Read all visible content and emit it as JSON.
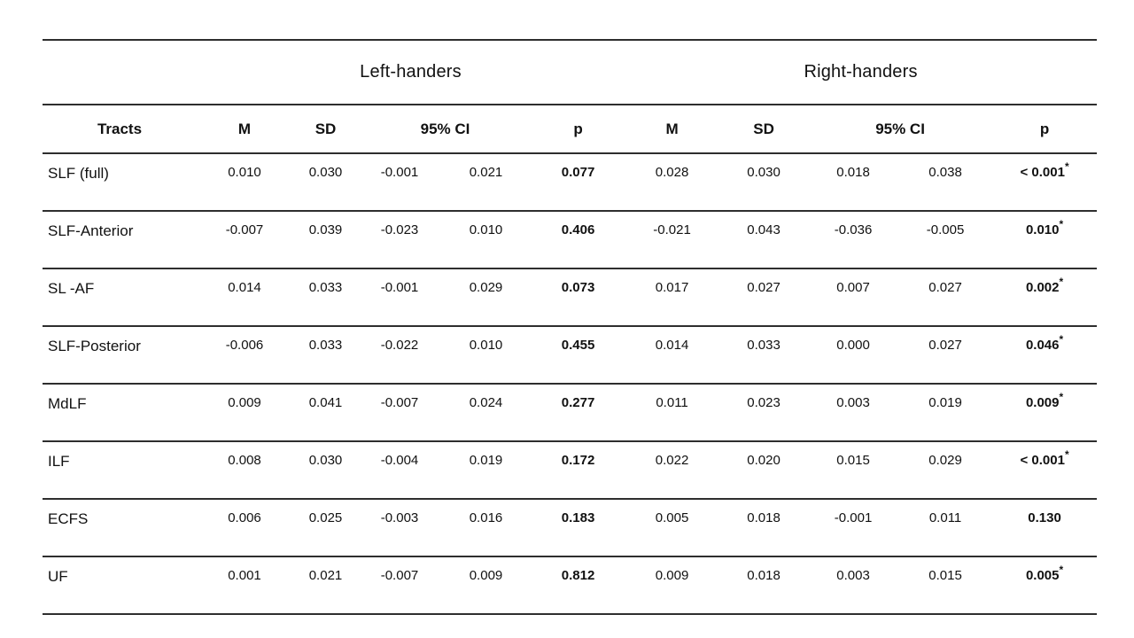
{
  "page": {
    "background": "#ffffff",
    "text_color": "#111111",
    "rule_color": "#2e2e2e"
  },
  "table": {
    "group_headers": {
      "left": "Left-handers",
      "right": "Right-handers"
    },
    "column_headers": {
      "tracts": "Tracts",
      "m": "M",
      "sd": "SD",
      "ci": "95% CI",
      "p": "p"
    },
    "rows": [
      {
        "tract": "SLF (full)",
        "l_m": "0.010",
        "l_sd": "0.030",
        "l_ci_lo": "-0.001",
        "l_ci_hi": "0.021",
        "l_p": "0.077",
        "l_star": "",
        "r_m": "0.028",
        "r_sd": "0.030",
        "r_ci_lo": "0.018",
        "r_ci_hi": "0.038",
        "r_p": "< 0.001",
        "r_star": "*"
      },
      {
        "tract": "SLF-Anterior",
        "l_m": "-0.007",
        "l_sd": "0.039",
        "l_ci_lo": "-0.023",
        "l_ci_hi": "0.010",
        "l_p": "0.406",
        "l_star": "",
        "r_m": "-0.021",
        "r_sd": "0.043",
        "r_ci_lo": "-0.036",
        "r_ci_hi": "-0.005",
        "r_p": "0.010",
        "r_star": "*"
      },
      {
        "tract": "SL -AF",
        "l_m": "0.014",
        "l_sd": "0.033",
        "l_ci_lo": "-0.001",
        "l_ci_hi": "0.029",
        "l_p": "0.073",
        "l_star": "",
        "r_m": "0.017",
        "r_sd": "0.027",
        "r_ci_lo": "0.007",
        "r_ci_hi": "0.027",
        "r_p": "0.002",
        "r_star": "*"
      },
      {
        "tract": "SLF-Posterior",
        "l_m": "-0.006",
        "l_sd": "0.033",
        "l_ci_lo": "-0.022",
        "l_ci_hi": "0.010",
        "l_p": "0.455",
        "l_star": "",
        "r_m": "0.014",
        "r_sd": "0.033",
        "r_ci_lo": "0.000",
        "r_ci_hi": "0.027",
        "r_p": "0.046",
        "r_star": "*"
      },
      {
        "tract": "MdLF",
        "l_m": "0.009",
        "l_sd": "0.041",
        "l_ci_lo": "-0.007",
        "l_ci_hi": "0.024",
        "l_p": "0.277",
        "l_star": "",
        "r_m": "0.011",
        "r_sd": "0.023",
        "r_ci_lo": "0.003",
        "r_ci_hi": "0.019",
        "r_p": "0.009",
        "r_star": "*"
      },
      {
        "tract": "ILF",
        "l_m": "0.008",
        "l_sd": "0.030",
        "l_ci_lo": "-0.004",
        "l_ci_hi": "0.019",
        "l_p": "0.172",
        "l_star": "",
        "r_m": "0.022",
        "r_sd": "0.020",
        "r_ci_lo": "0.015",
        "r_ci_hi": "0.029",
        "r_p": "< 0.001",
        "r_star": "*"
      },
      {
        "tract": "ECFS",
        "l_m": "0.006",
        "l_sd": "0.025",
        "l_ci_lo": "-0.003",
        "l_ci_hi": "0.016",
        "l_p": "0.183",
        "l_star": "",
        "r_m": "0.005",
        "r_sd": "0.018",
        "r_ci_lo": "-0.001",
        "r_ci_hi": "0.011",
        "r_p": "0.130",
        "r_star": ""
      },
      {
        "tract": "UF",
        "l_m": "0.001",
        "l_sd": "0.021",
        "l_ci_lo": "-0.007",
        "l_ci_hi": "0.009",
        "l_p": "0.812",
        "l_star": "",
        "r_m": "0.009",
        "r_sd": "0.018",
        "r_ci_lo": "0.003",
        "r_ci_hi": "0.015",
        "r_p": "0.005",
        "r_star": "*"
      }
    ]
  }
}
